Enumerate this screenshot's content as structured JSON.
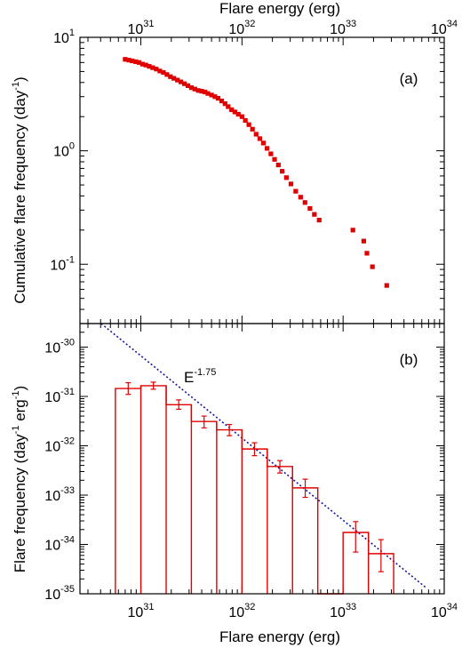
{
  "chart_data": [
    {
      "type": "scatter",
      "panel_label": "(a)",
      "xlabel": "Flare energy (erg)",
      "ylabel": {
        "prefix": "Cumulative flare frequency (day",
        "sup": "-1",
        "suffix": ")"
      },
      "x_axis_position": "top",
      "xscale": "log",
      "yscale": "log",
      "xlim": [
        2.5e+30,
        1e+34
      ],
      "ylim": [
        0.03,
        10
      ],
      "x_ticks": [
        {
          "value": 1e+31,
          "base": "10",
          "exp": "31"
        },
        {
          "value": 1e+32,
          "base": "10",
          "exp": "32"
        },
        {
          "value": 1e+33,
          "base": "10",
          "exp": "33"
        },
        {
          "value": 1e+34,
          "base": "10",
          "exp": "34"
        }
      ],
      "y_ticks": [
        {
          "value": 10,
          "label": "10",
          "exp": "1"
        },
        {
          "value": 1,
          "label": "10",
          "exp": "0"
        },
        {
          "value": 0.1,
          "label": "10",
          "exp": "-1"
        }
      ],
      "marker_color": "#e00000",
      "series": [
        {
          "x": [
            7e+30,
            7.6e+30,
            8.2e+30,
            8.9e+30,
            9.6e+30,
            1.04e+31,
            1.12e+31,
            1.21e+31,
            1.31e+31,
            1.42e+31,
            1.54e+31,
            1.67e+31,
            1.81e+31,
            1.96e+31,
            2.12e+31,
            2.3e+31,
            2.49e+31,
            2.7e+31,
            2.92e+31,
            3.16e+31,
            3.42e+31,
            3.7e+31,
            4e+31,
            4.3e+31,
            4.6e+31,
            5e+31,
            5.4e+31,
            5.8e+31,
            6.3e+31,
            6.8e+31,
            7.3e+31,
            7.9e+31,
            8.5e+31,
            9.2e+31,
            1e+32,
            1.08e+32,
            1.17e+32,
            1.27e+32,
            1.38e+32,
            1.5e+32,
            1.63e+32,
            1.77e+32,
            1.93e+32,
            2.1e+32,
            2.29e+32,
            2.5e+32,
            2.75e+32,
            3.05e+32,
            3.4e+32,
            3.8e+32,
            4.2e+32,
            4.7e+32,
            5.2e+32,
            5.8e+32,
            1.25e+33,
            1.6e+33,
            1.72e+33,
            1.95e+33,
            2.7e+33
          ],
          "y": [
            6.4,
            6.3,
            6.2,
            6.1,
            6.0,
            5.8,
            5.7,
            5.55,
            5.4,
            5.25,
            5.05,
            4.9,
            4.7,
            4.5,
            4.35,
            4.2,
            4.05,
            3.9,
            3.75,
            3.6,
            3.5,
            3.4,
            3.35,
            3.3,
            3.2,
            3.1,
            3.0,
            2.9,
            2.75,
            2.6,
            2.45,
            2.3,
            2.2,
            2.1,
            2.0,
            1.85,
            1.7,
            1.55,
            1.4,
            1.28,
            1.17,
            1.05,
            0.94,
            0.84,
            0.75,
            0.66,
            0.58,
            0.51,
            0.44,
            0.39,
            0.35,
            0.31,
            0.275,
            0.245,
            0.2,
            0.16,
            0.125,
            0.095,
            0.065
          ]
        }
      ]
    },
    {
      "type": "histogram",
      "panel_label": "(b)",
      "xlabel": "Flare energy (erg)",
      "ylabel": {
        "prefix": "Flare frequency (day",
        "sup1": "-1",
        "middle": " erg",
        "sup2": "-1",
        "suffix": ")"
      },
      "xscale": "log",
      "yscale": "log",
      "xlim": [
        2.5e+30,
        1e+34
      ],
      "ylim": [
        1e-35,
        3e-30
      ],
      "x_ticks": [
        {
          "value": 1e+31,
          "base": "10",
          "exp": "31"
        },
        {
          "value": 1e+32,
          "base": "10",
          "exp": "32"
        },
        {
          "value": 1e+33,
          "base": "10",
          "exp": "33"
        },
        {
          "value": 1e+34,
          "base": "10",
          "exp": "34"
        }
      ],
      "y_ticks": [
        {
          "value": 1e-30,
          "label": "10",
          "exp": "-30"
        },
        {
          "value": 1e-31,
          "label": "10",
          "exp": "-31"
        },
        {
          "value": 1e-32,
          "label": "10",
          "exp": "-32"
        },
        {
          "value": 1e-33,
          "label": "10",
          "exp": "-33"
        },
        {
          "value": 1e-34,
          "label": "10",
          "exp": "-34"
        },
        {
          "value": 1e-35,
          "label": "10",
          "exp": "-35"
        }
      ],
      "line_color": "#e00000",
      "fit_color": "#1515a0",
      "bin_edges": [
        5.6e+30,
        1e+31,
        1.78e+31,
        3.16e+31,
        5.62e+31,
        1e+32,
        1.78e+32,
        3.16e+32,
        5.62e+32,
        1e+33,
        1.78e+33,
        3.16e+33
      ],
      "values": [
        1.45e-31,
        1.65e-31,
        6.8e-32,
        3.1e-32,
        2.1e-32,
        8.6e-33,
        3.8e-33,
        1.4e-33,
        0,
        1.75e-34,
        6.5e-35
      ],
      "bins": [
        {
          "center": 7.5e+30,
          "y": 1.45e-31,
          "err_low": 1.1e-31,
          "err_high": 1.9e-31
        },
        {
          "center": 1.33e+31,
          "y": 1.65e-31,
          "err_low": 1.4e-31,
          "err_high": 1.95e-31
        },
        {
          "center": 2.37e+31,
          "y": 6.8e-32,
          "err_low": 5.5e-32,
          "err_high": 8.5e-32
        },
        {
          "center": 4.22e+31,
          "y": 3.1e-32,
          "err_low": 2.3e-32,
          "err_high": 4e-32
        },
        {
          "center": 7.5e+31,
          "y": 2.1e-32,
          "err_low": 1.6e-32,
          "err_high": 2.7e-32
        },
        {
          "center": 1.33e+32,
          "y": 8.6e-33,
          "err_low": 6.3e-33,
          "err_high": 1.15e-32
        },
        {
          "center": 2.37e+32,
          "y": 3.8e-33,
          "err_low": 2.8e-33,
          "err_high": 5e-33
        },
        {
          "center": 4.22e+32,
          "y": 1.4e-33,
          "err_low": 9e-34,
          "err_high": 2.1e-33
        },
        {
          "center": 1.33e+33,
          "y": 1.75e-34,
          "err_low": 7e-35,
          "err_high": 2.9e-34
        },
        {
          "center": 2.37e+33,
          "y": 6.5e-35,
          "err_low": 2.8e-35,
          "err_high": 1.25e-34
        }
      ],
      "fit_line": {
        "label_base": "E",
        "label_exp": "-1.75",
        "x": [
          3.9e+30,
          6.7e+33
        ],
        "y": [
          3.2e-30,
          1.3e-35
        ]
      }
    }
  ]
}
